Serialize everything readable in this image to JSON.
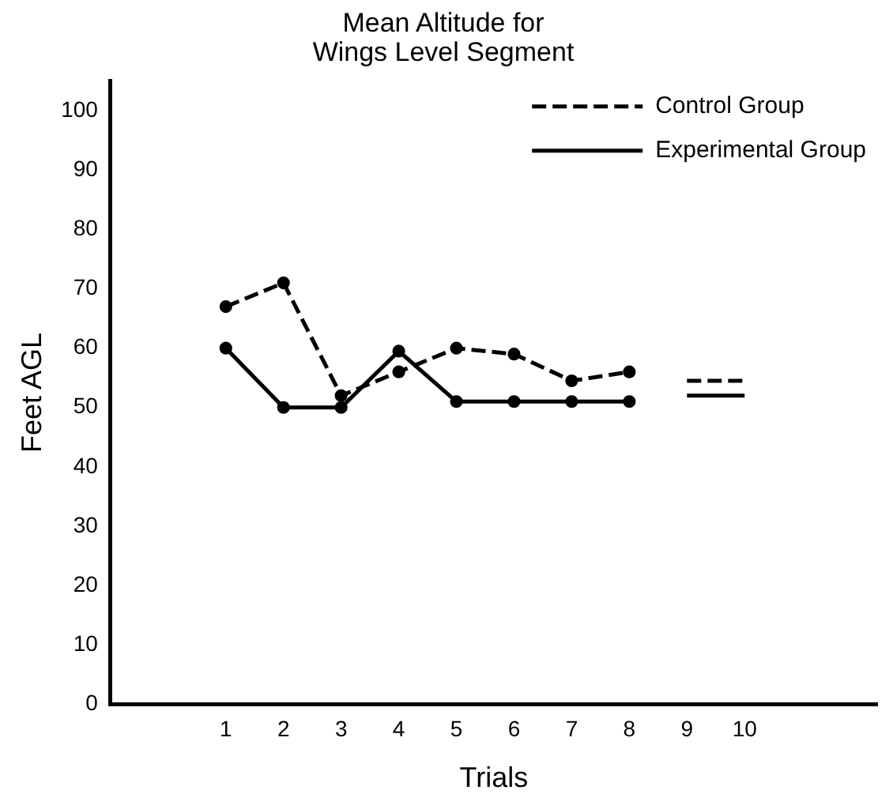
{
  "chart_data": {
    "type": "line",
    "title": "Mean Altitude for\nWings Level Segment",
    "xlabel": "Trials",
    "ylabel": "Feet AGL",
    "xlim": [
      -1,
      12.3
    ],
    "xticks": [
      1,
      2,
      3,
      4,
      5,
      6,
      7,
      8,
      9,
      10
    ],
    "ylim": [
      0,
      105
    ],
    "yticks": [
      0,
      10,
      20,
      30,
      40,
      50,
      60,
      70,
      80,
      90,
      100
    ],
    "grid": false,
    "legend": "top right",
    "series": [
      {
        "name": "Control Group",
        "color": "#000000",
        "line_style": "dashed",
        "marker": "circle",
        "x": [
          1,
          2,
          3,
          4,
          5,
          6,
          7,
          8
        ],
        "values": [
          67,
          71,
          52,
          56,
          60,
          59,
          54.5,
          56
        ]
      },
      {
        "name": "Experimental Group",
        "color": "#000000",
        "line_style": "solid",
        "marker": "circle",
        "x": [
          1,
          2,
          3,
          4,
          5,
          6,
          7,
          8
        ],
        "values": [
          60,
          50,
          50,
          59.5,
          51,
          51,
          51,
          51
        ]
      },
      {
        "color": "#000000",
        "line_style": "dashed",
        "marker": "none",
        "x": [
          9,
          10
        ],
        "values": [
          54.5,
          54.5
        ]
      },
      {
        "color": "#000000",
        "line_style": "solid",
        "marker": "none",
        "x": [
          9,
          10
        ],
        "values": [
          52,
          52
        ]
      }
    ]
  }
}
